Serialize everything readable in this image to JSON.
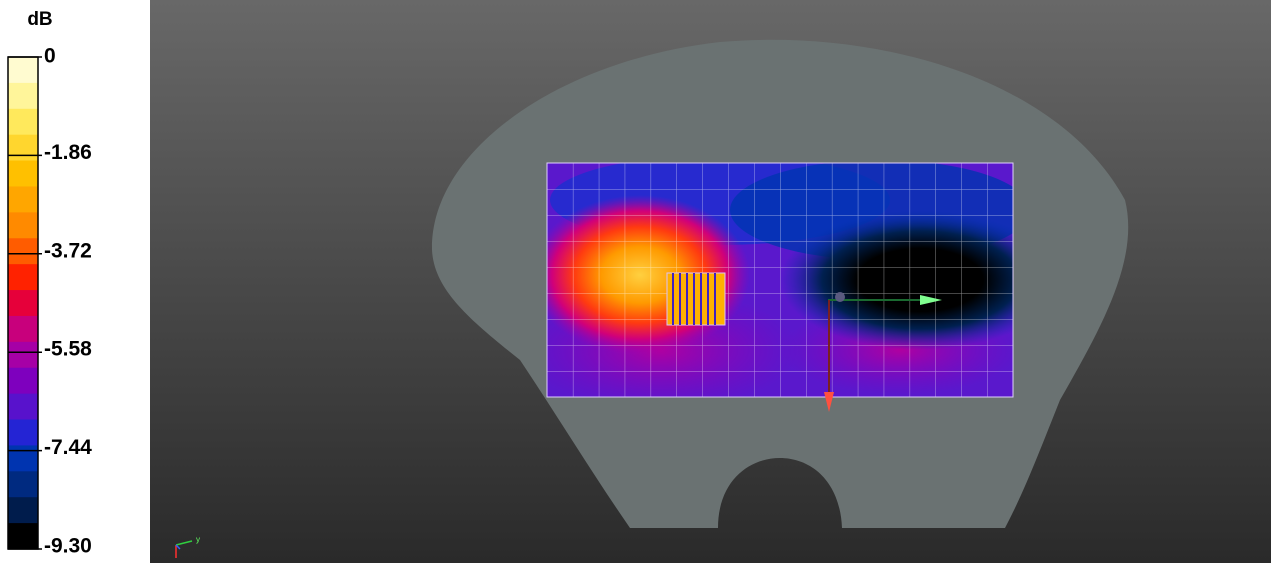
{
  "colorbar": {
    "title": "dB",
    "range": [
      -9.3,
      0
    ],
    "ticks": [
      0,
      -1.86,
      -3.72,
      -5.58,
      -7.44,
      {
        "value": -9.3,
        "label": "-9.30"
      }
    ],
    "colors": [
      "#fffbd0",
      "#fff59a",
      "#ffe95c",
      "#ffd62e",
      "#ffc000",
      "#ffa600",
      "#ff8a00",
      "#ff5c00",
      "#ff2200",
      "#e6003a",
      "#c8007c",
      "#a600a6",
      "#7e00be",
      "#5812cc",
      "#2424d4",
      "#0034b0",
      "#002a80",
      "#001c4c",
      "#000000"
    ]
  },
  "viewport": {
    "axis_label": "y"
  }
}
